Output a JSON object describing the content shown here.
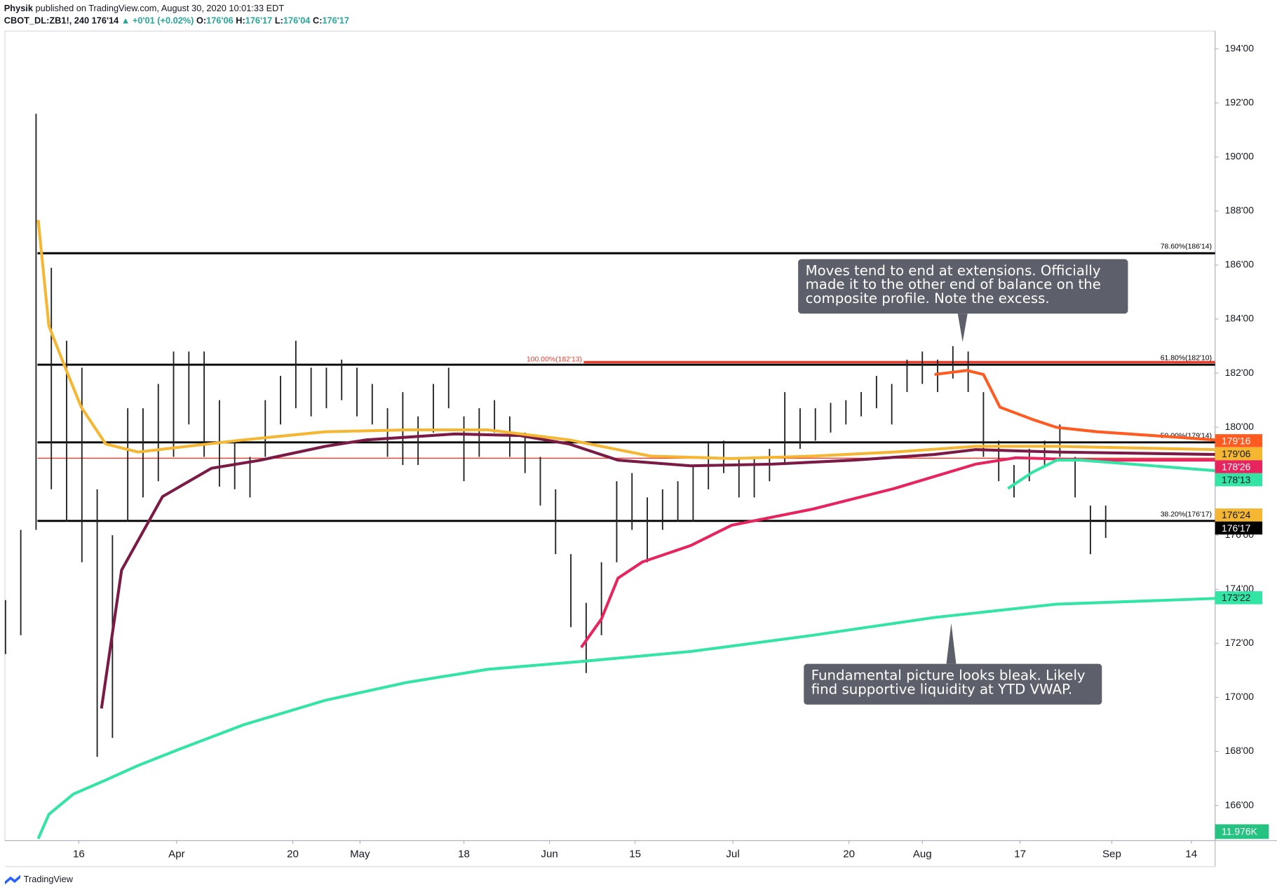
{
  "header": {
    "author": "Physik",
    "published": "published on TradingView.com, August 30, 2020 10:01:33 EDT",
    "symbol": "CBOT_DL:ZB1!, 240",
    "last": "176'14",
    "change": "▲ +0'01 (+0.02%)",
    "open_label": "O:",
    "open": "176'06",
    "high_label": "H:",
    "high": "176'17",
    "low_label": "L:",
    "low": "176'04",
    "close_label": "C:",
    "close": "176'17"
  },
  "footer": {
    "brand": "TradingView"
  },
  "chart_data": {
    "type": "ohlc",
    "xlim": [
      63.9,
      261.9
    ],
    "ylim": [
      164.7,
      194.66
    ],
    "grid": false,
    "xticks": [
      {
        "value": 76,
        "label": "16"
      },
      {
        "value": 92,
        "label": "Apr"
      },
      {
        "value": 111,
        "label": "20"
      },
      {
        "value": 122,
        "label": "May"
      },
      {
        "value": 139,
        "label": "18"
      },
      {
        "value": 153,
        "label": "Jun"
      },
      {
        "value": 167,
        "label": "15"
      },
      {
        "value": 183,
        "label": "Jul"
      },
      {
        "value": 202,
        "label": "20"
      },
      {
        "value": 214,
        "label": "Aug"
      },
      {
        "value": 230,
        "label": "17"
      },
      {
        "value": 245,
        "label": "Sep"
      },
      {
        "value": 258,
        "label": "14"
      }
    ],
    "yticks": [
      {
        "value": 166,
        "label": "166'00"
      },
      {
        "value": 168,
        "label": "168'00"
      },
      {
        "value": 170,
        "label": "170'00"
      },
      {
        "value": 172,
        "label": "172'00"
      },
      {
        "value": 174,
        "label": "174'00"
      },
      {
        "value": 176,
        "label": "176'00"
      },
      {
        "value": 178,
        "label": "178'00"
      },
      {
        "value": 180,
        "label": "180'00"
      },
      {
        "value": 182,
        "label": "182'00"
      },
      {
        "value": 184,
        "label": "184'00"
      },
      {
        "value": 186,
        "label": "186'00"
      },
      {
        "value": 188,
        "label": "188'00"
      },
      {
        "value": 190,
        "label": "190'00"
      },
      {
        "value": 192,
        "label": "192'00"
      },
      {
        "value": 194,
        "label": "194'00"
      }
    ],
    "bar_color": "#222222",
    "bars": {
      "x": [
        64,
        66.5,
        69,
        71.5,
        74,
        76.5,
        79,
        81.5,
        84,
        86.5,
        89,
        91.5,
        94,
        96.5,
        99,
        101.5,
        104,
        106.5,
        109,
        111.5,
        114,
        116.5,
        119,
        121.5,
        124,
        126.5,
        129,
        131.5,
        134,
        136.5,
        139,
        141.5,
        144,
        146.5,
        149,
        151.5,
        154,
        156.5,
        159,
        161.5,
        164,
        166.5,
        169,
        171.5,
        174,
        176.5,
        179,
        181.5,
        184,
        186.5,
        189,
        191.5,
        194,
        196.5,
        199,
        201.5,
        204,
        206.5,
        209,
        211.5,
        214,
        216.5,
        219,
        221.5,
        224,
        226.5,
        229,
        231.5,
        234,
        236.5,
        239,
        241.5,
        244
      ],
      "high": [
        173.6,
        176.2,
        191.6,
        185.9,
        183.2,
        182.2,
        177.7,
        176.0,
        180.7,
        180.7,
        181.6,
        182.8,
        182.8,
        182.8,
        181.0,
        179.5,
        178.9,
        181.0,
        181.9,
        183.2,
        182.2,
        182.2,
        182.5,
        182.2,
        181.6,
        180.7,
        181.3,
        180.4,
        181.6,
        182.2,
        180.4,
        180.7,
        181.0,
        180.4,
        179.8,
        178.9,
        177.7,
        175.3,
        173.5,
        175.0,
        178.0,
        178.3,
        177.4,
        177.7,
        178.0,
        178.6,
        179.4,
        179.5,
        178.9,
        178.9,
        179.2,
        181.3,
        180.7,
        180.7,
        180.9,
        181.0,
        181.3,
        181.9,
        181.6,
        182.5,
        182.8,
        182.5,
        183.0,
        182.8,
        181.3,
        179.5,
        178.6,
        179.2,
        179.5,
        180.1,
        178.9,
        177.1,
        177.1
      ],
      "low": [
        171.6,
        172.3,
        176.2,
        177.7,
        176.5,
        175.0,
        167.8,
        168.5,
        176.5,
        177.4,
        178.0,
        178.9,
        180.1,
        178.9,
        177.8,
        177.7,
        177.4,
        178.9,
        180.1,
        180.7,
        180.4,
        180.7,
        181.0,
        180.4,
        180.1,
        178.9,
        178.6,
        178.6,
        179.8,
        180.7,
        178.0,
        178.9,
        179.8,
        178.9,
        178.3,
        177.1,
        175.3,
        172.6,
        170.9,
        172.3,
        175.0,
        176.2,
        175.0,
        176.2,
        176.5,
        176.5,
        177.7,
        178.3,
        177.4,
        177.4,
        178.0,
        178.6,
        179.2,
        179.5,
        179.8,
        180.1,
        180.4,
        180.7,
        180.1,
        181.3,
        181.6,
        181.3,
        181.8,
        181.3,
        178.9,
        178.0,
        177.4,
        178.0,
        178.6,
        178.9,
        177.4,
        175.3,
        175.9
      ]
    },
    "lines": [
      {
        "color": "#33e5a5",
        "x": [
          69.35,
          71.1,
          75.1,
          80.4,
          85.7,
          92.4,
          103.0,
          116.3,
          129.6,
          142.9,
          158.8,
          176.1,
          196.1,
          216.0,
          236.0,
          261.9
        ],
        "values": [
          164.77,
          165.67,
          166.42,
          166.94,
          167.48,
          168.08,
          168.99,
          169.89,
          170.55,
          171.04,
          171.34,
          171.7,
          172.3,
          172.96,
          173.45,
          173.66
        ]
      },
      {
        "color": "#7a1a45",
        "x": [
          79.7,
          83.0,
          89.7,
          97.7,
          105.7,
          116.3,
          123.0,
          137.6,
          148.2,
          156.2,
          164.2,
          176.1,
          189.4,
          202.7,
          216.0,
          222.7,
          236.0,
          261.9
        ],
        "values": [
          169.59,
          174.71,
          177.43,
          178.48,
          178.78,
          179.29,
          179.53,
          179.75,
          179.69,
          179.38,
          178.78,
          178.57,
          178.63,
          178.78,
          178.99,
          179.17,
          179.08,
          178.99
        ]
      },
      {
        "color": "#f5b731",
        "x": [
          69.35,
          71.1,
          73.7,
          76.4,
          80.4,
          85.7,
          93.7,
          103.0,
          116.3,
          129.6,
          142.9,
          156.2,
          169.5,
          182.8,
          196.1,
          209.4,
          222.7,
          236.0,
          261.9
        ],
        "values": [
          187.67,
          183.75,
          182.25,
          180.74,
          179.38,
          179.08,
          179.29,
          179.53,
          179.83,
          179.9,
          179.9,
          179.53,
          178.93,
          178.84,
          178.93,
          179.08,
          179.29,
          179.29,
          179.17
        ]
      },
      {
        "color": "#e8245f",
        "x": [
          158.2,
          161.5,
          164.2,
          168.2,
          176.1,
          182.8,
          196.1,
          209.4,
          222.7,
          229.3,
          242.6,
          261.9
        ],
        "values": [
          171.85,
          172.9,
          174.41,
          175.01,
          175.62,
          176.37,
          176.97,
          177.73,
          178.63,
          178.87,
          178.78,
          178.78
        ]
      },
      {
        "color": "#ff5a1f",
        "x": [
          216.0,
          221.3,
          224.0,
          226.7,
          232.0,
          236.0,
          242.6,
          261.9
        ],
        "values": [
          181.95,
          182.1,
          181.95,
          180.74,
          180.29,
          179.99,
          179.83,
          179.53
        ]
      },
      {
        "color": "#33e5a5",
        "x": [
          228.0,
          232.0,
          236.0,
          240.0,
          261.9
        ],
        "values": [
          177.73,
          178.33,
          178.78,
          178.78,
          178.39
        ]
      }
    ],
    "fib_levels": [
      {
        "label": "78.60%(186'14)",
        "value": 186.4375
      },
      {
        "label": "61.80%(182'10)",
        "value": 182.3125
      },
      {
        "label": "50.00%(179'14)",
        "value": 179.4375
      },
      {
        "label": "38.20%(176'17)",
        "value": 176.53125
      }
    ],
    "fib_color": "#000000",
    "extension": {
      "label": "100.00%(182'13)",
      "value": 182.40625,
      "start": 158.6,
      "color": "#f23a2a"
    },
    "red_line": {
      "value": 178.85,
      "color": "#f23a2a"
    },
    "price_labels": [
      {
        "label": "179'16",
        "value": 179.5,
        "color": "#ff5a1f"
      },
      {
        "label": "179'06",
        "value": 179.1875,
        "color": "#f5b731"
      },
      {
        "label": "178'26",
        "value": 178.8125,
        "color": "#e8245f"
      },
      {
        "label": "178'13",
        "value": 178.40625,
        "color": "#33e5a5"
      },
      {
        "label": "176'24",
        "value": 176.75,
        "color": "#f5b731"
      },
      {
        "label": "176'17",
        "value": 176.53125,
        "color": "#000000"
      },
      {
        "label": "173'22",
        "value": 173.6875,
        "color": "#33e5a5"
      }
    ],
    "volume_label": {
      "label": "11.976K",
      "color": "#26c281"
    },
    "annotations": [
      {
        "lines": [
          "Moves tend to end at extensions. Officially",
          "made it to the other end of balance on the",
          "composite profile. Note the excess."
        ]
      },
      {
        "lines": [
          "Fundamental picture looks bleak. Likely",
          "find supportive liquidity at YTD VWAP."
        ]
      }
    ]
  }
}
